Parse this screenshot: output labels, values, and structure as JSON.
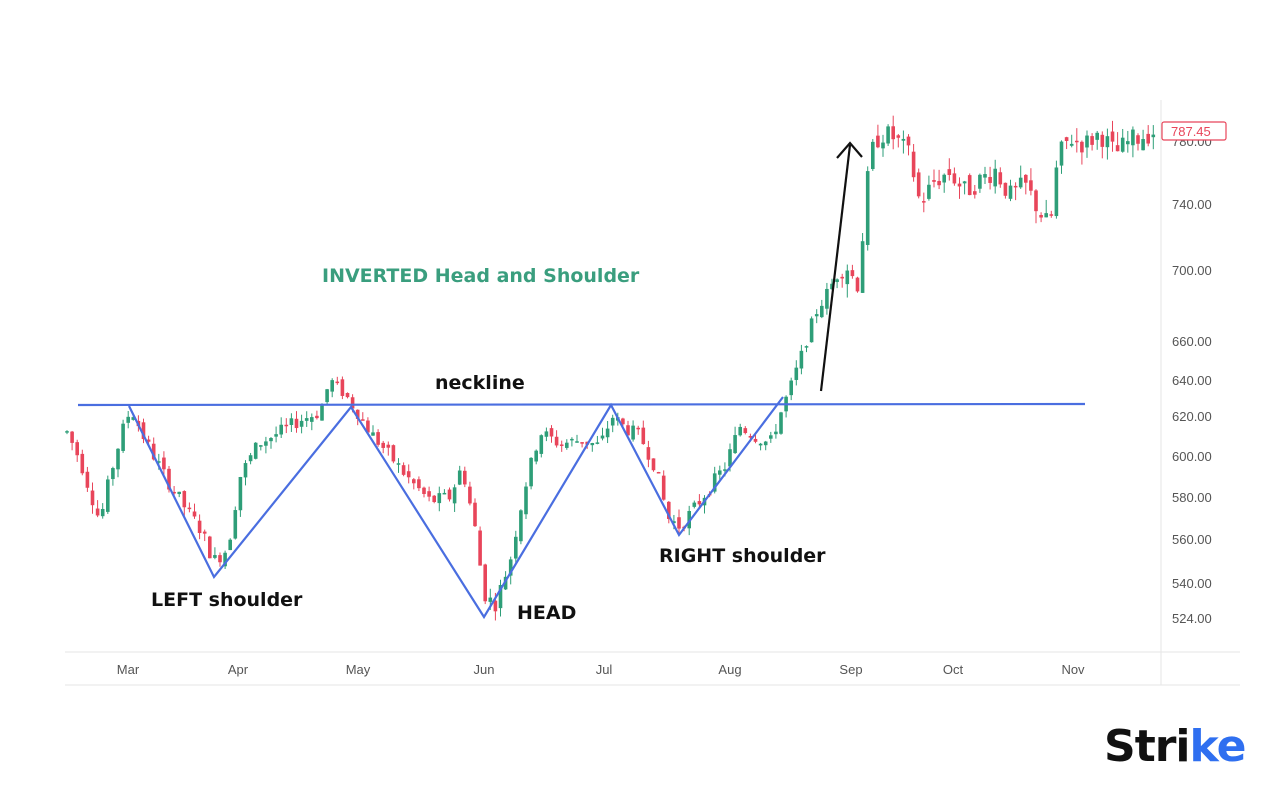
{
  "chart_data": {
    "type": "candlestick",
    "title": "INVERTED Head and Shoulder",
    "xlabel": "",
    "ylabel": "",
    "x_ticks": [
      "Mar",
      "Apr",
      "May",
      "Jun",
      "Jul",
      "Aug",
      "Sep",
      "Oct",
      "Nov"
    ],
    "y_ticks": [
      780,
      740,
      700,
      660,
      640,
      620,
      600,
      580,
      560,
      540,
      524
    ],
    "y_tick_labels": [
      "780.00",
      "740.00",
      "700.00",
      "660.00",
      "640.00",
      "620.00",
      "600.00",
      "580.00",
      "560.00",
      "540.00",
      "524.00"
    ],
    "ylim": [
      515,
      800
    ],
    "last_price": "787.45",
    "grid": false,
    "annotations": {
      "neckline": {
        "label": "neckline",
        "price": 628
      },
      "left_shoulder": {
        "label": "LEFT shoulder",
        "low": 548,
        "month": "Apr"
      },
      "head": {
        "label": "HEAD",
        "low": 524,
        "month": "Jun"
      },
      "right_shoulder": {
        "label": "RIGHT shoulder",
        "low": 565,
        "month": "Jul-Aug"
      },
      "breakout_arrow": {
        "from_price": 628,
        "to_price": 780
      }
    },
    "pattern_points": [
      {
        "x": "late Feb",
        "price": 628
      },
      {
        "x": "early Apr",
        "price": 548
      },
      {
        "x": "end Apr",
        "price": 626
      },
      {
        "x": "end May",
        "price": 524
      },
      {
        "x": "early Jul",
        "price": 628
      },
      {
        "x": "mid Jul",
        "price": 565
      },
      {
        "x": "mid Aug",
        "price": 630
      }
    ],
    "price_trend": [
      {
        "month": "Mar",
        "approx_close": 575
      },
      {
        "month": "Apr",
        "approx_close": 555
      },
      {
        "month": "May",
        "approx_close": 630
      },
      {
        "month": "Jun",
        "approx_close": 530
      },
      {
        "month": "Jul",
        "approx_close": 615
      },
      {
        "month": "Aug",
        "approx_close": 590
      },
      {
        "month": "Sep",
        "approx_close": 780
      },
      {
        "month": "Oct",
        "approx_close": 745
      },
      {
        "month": "Nov",
        "approx_close": 785
      }
    ],
    "colors": {
      "up": "#2e9e78",
      "down": "#e8455a",
      "pattern_line": "#4a6ee0",
      "arrow": "#111111"
    }
  },
  "labels": {
    "title": "INVERTED Head and Shoulder",
    "neckline": "neckline",
    "left_shoulder": "LEFT shoulder",
    "head": "HEAD",
    "right_shoulder": "RIGHT shoulder",
    "last_price": "787.45"
  },
  "logo": {
    "text_main": "Stri",
    "text_accent": "ke"
  }
}
